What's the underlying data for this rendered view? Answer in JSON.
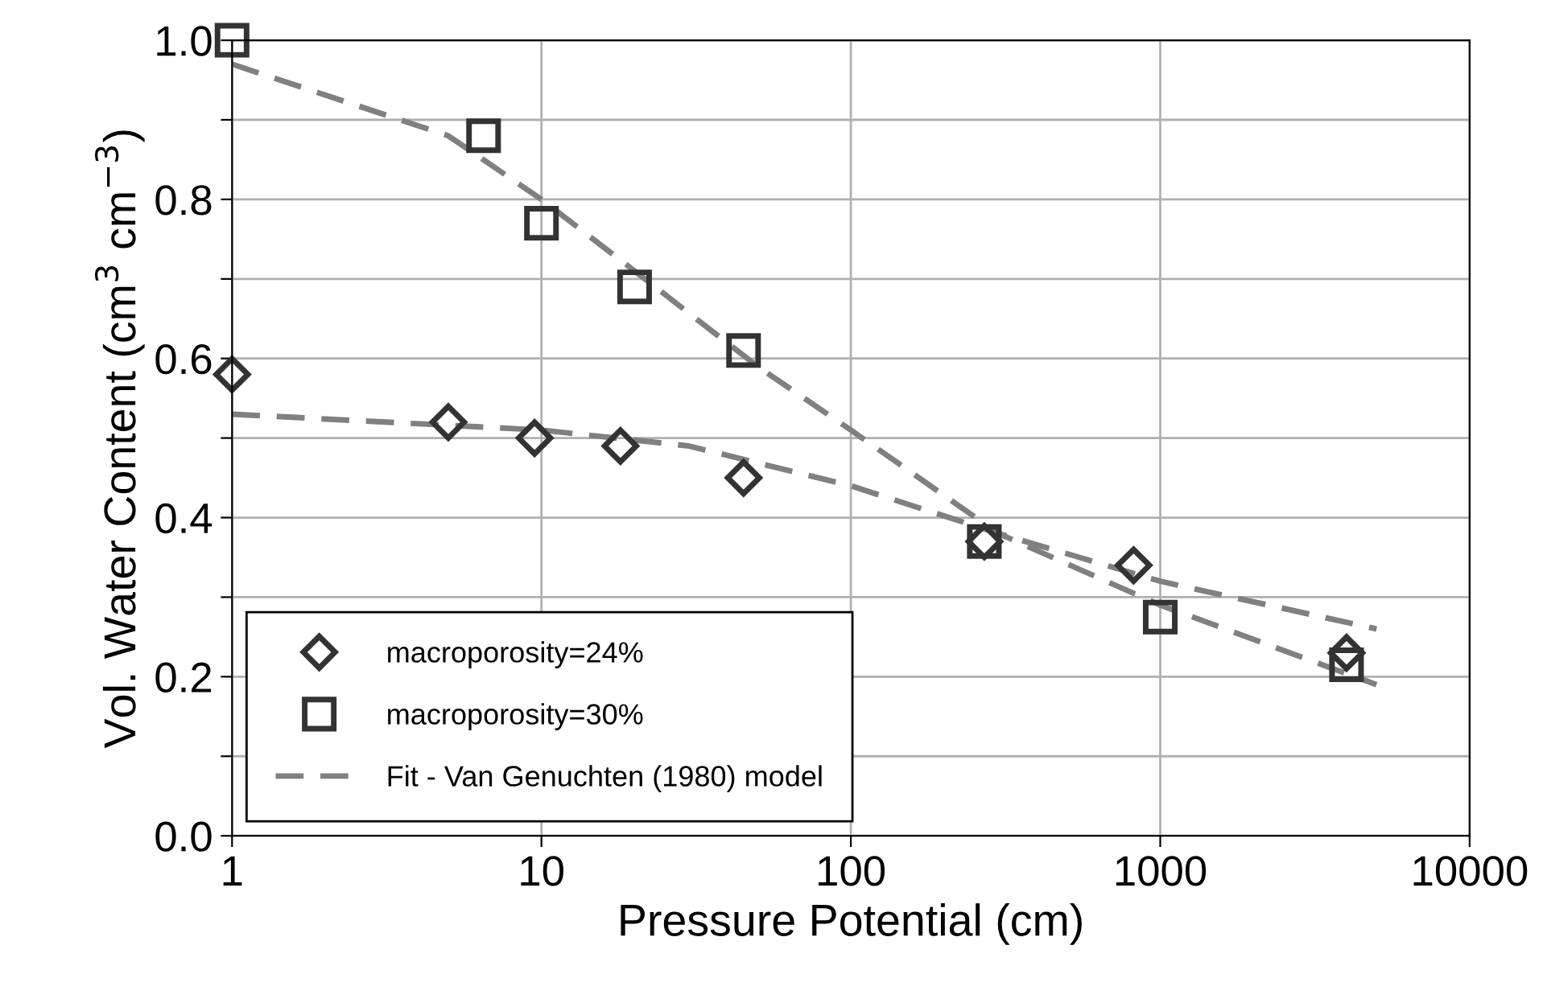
{
  "chart_data": {
    "type": "scatter",
    "xlabel": "Pressure Potential (cm)",
    "ylabel": "Vol. Water Content (cm$^{3}$ cm$^{−3}$)",
    "log": "x",
    "xlim": [
      1,
      10000
    ],
    "xticks": [
      1,
      10,
      100,
      1000,
      10000
    ],
    "ylim": [
      0,
      1.0
    ],
    "yticks": [
      {
        "value": 0,
        "label": "0.0"
      },
      {
        "value": 0.1,
        "label": null
      },
      {
        "value": 0.2,
        "label": "0.2"
      },
      {
        "value": 0.3,
        "label": null
      },
      {
        "value": 0.4,
        "label": "0.4"
      },
      {
        "value": 0.5,
        "label": null
      },
      {
        "value": 0.6,
        "label": "0.6"
      },
      {
        "value": 0.7,
        "label": null
      },
      {
        "value": 0.8,
        "label": "0.8"
      },
      {
        "value": 0.9,
        "label": null
      },
      {
        "value": 1.0,
        "label": "1.0"
      }
    ],
    "grid": true,
    "legend": "bottom left",
    "series": [
      {
        "type": "line",
        "name": "Fit - Van Genuchten (1980) model",
        "color": "#808080",
        "line_style": "dashed",
        "marker": "none",
        "x": [
          1,
          10,
          30,
          100,
          300,
          1000,
          5000
        ],
        "values": [
          0.53,
          0.51,
          0.49,
          0.44,
          0.38,
          0.32,
          0.26
        ]
      },
      {
        "type": "line",
        "color": "#808080",
        "line_style": "dashed",
        "marker": "none",
        "x": [
          1,
          5,
          10,
          20,
          50,
          100,
          300,
          1000,
          5000
        ],
        "values": [
          0.97,
          0.88,
          0.8,
          0.71,
          0.59,
          0.51,
          0.38,
          0.29,
          0.19
        ]
      },
      {
        "name": "macroporosity=24%",
        "color": "#333333",
        "marker": "diamond",
        "x": [
          1,
          5,
          9.5,
          18,
          45,
          270,
          820,
          4000
        ],
        "values": [
          0.58,
          0.52,
          0.5,
          0.49,
          0.45,
          0.37,
          0.34,
          0.23
        ]
      },
      {
        "name": "macroporosity=30%",
        "color": "#333333",
        "marker": "square",
        "x": [
          1,
          6.5,
          10,
          20,
          45,
          270,
          1000,
          4000
        ],
        "values": [
          1.0,
          0.88,
          0.77,
          0.69,
          0.61,
          0.37,
          0.275,
          0.215
        ]
      }
    ]
  }
}
